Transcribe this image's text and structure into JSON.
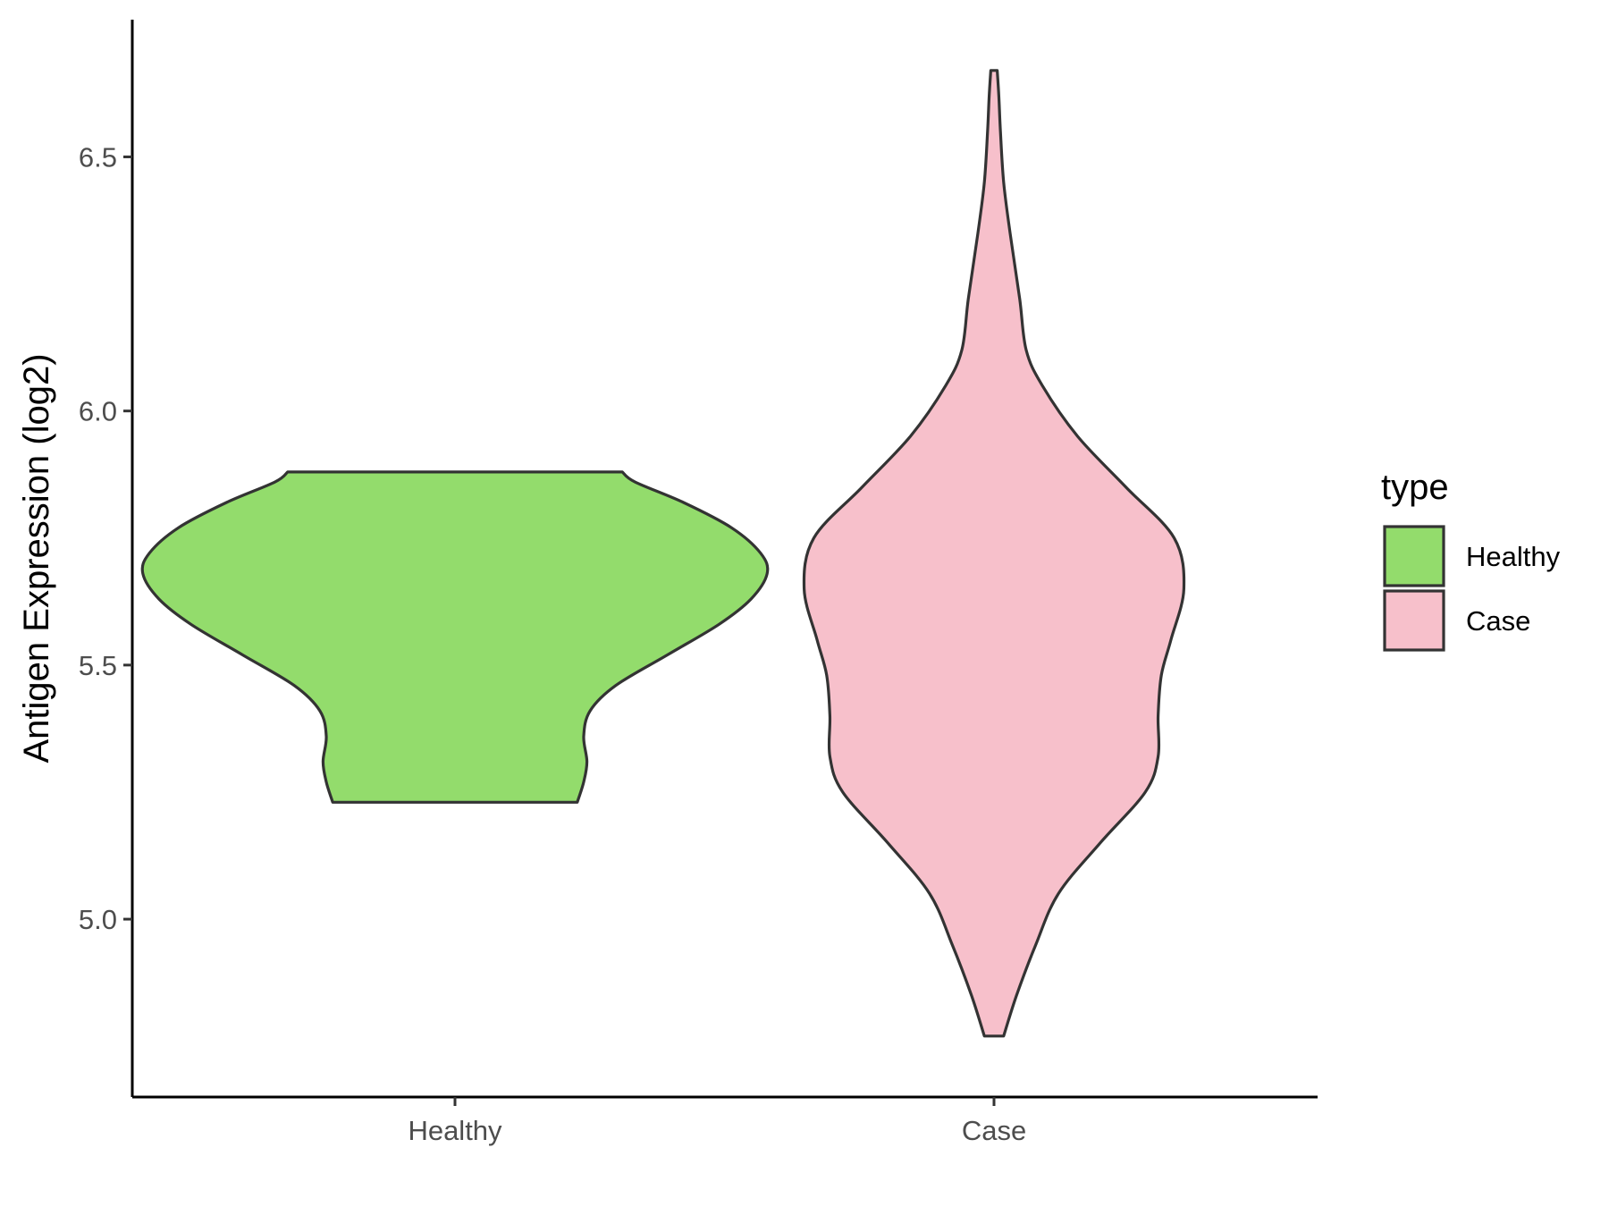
{
  "chart_data": {
    "type": "violin",
    "ylabel": "Antigen Expression (log2)",
    "xlabel": "",
    "ylim": [
      4.65,
      6.77
    ],
    "yticks": [
      5.0,
      5.5,
      6.0,
      6.5
    ],
    "ytick_labels": [
      "5.0",
      "5.5",
      "6.0",
      "6.5"
    ],
    "categories": [
      "Healthy",
      "Case"
    ],
    "grid": false,
    "legend": {
      "title": "type",
      "position": "right",
      "entries": [
        {
          "label": "Healthy",
          "color": "#93DC6C"
        },
        {
          "label": "Case",
          "color": "#F7C0CB"
        }
      ]
    },
    "series": [
      {
        "name": "Healthy",
        "color": "#93DC6C",
        "min": 5.23,
        "max": 5.88,
        "profile": [
          [
            5.23,
            0.38
          ],
          [
            5.27,
            0.4
          ],
          [
            5.31,
            0.41
          ],
          [
            5.36,
            0.4
          ],
          [
            5.41,
            0.42
          ],
          [
            5.46,
            0.5
          ],
          [
            5.52,
            0.66
          ],
          [
            5.58,
            0.82
          ],
          [
            5.63,
            0.92
          ],
          [
            5.68,
            0.97
          ],
          [
            5.72,
            0.95
          ],
          [
            5.77,
            0.86
          ],
          [
            5.82,
            0.71
          ],
          [
            5.86,
            0.56
          ],
          [
            5.88,
            0.52
          ]
        ]
      },
      {
        "name": "Case",
        "color": "#F7C0CB",
        "min": 4.77,
        "max": 6.67,
        "profile": [
          [
            4.77,
            0.03
          ],
          [
            4.85,
            0.07
          ],
          [
            4.95,
            0.13
          ],
          [
            5.05,
            0.2
          ],
          [
            5.15,
            0.33
          ],
          [
            5.25,
            0.47
          ],
          [
            5.32,
            0.51
          ],
          [
            5.4,
            0.51
          ],
          [
            5.48,
            0.52
          ],
          [
            5.55,
            0.55
          ],
          [
            5.65,
            0.59
          ],
          [
            5.75,
            0.56
          ],
          [
            5.85,
            0.41
          ],
          [
            5.95,
            0.26
          ],
          [
            6.05,
            0.15
          ],
          [
            6.12,
            0.1
          ],
          [
            6.22,
            0.08
          ],
          [
            6.35,
            0.05
          ],
          [
            6.45,
            0.03
          ],
          [
            6.55,
            0.02
          ],
          [
            6.62,
            0.015
          ],
          [
            6.67,
            0.01
          ]
        ]
      }
    ]
  }
}
